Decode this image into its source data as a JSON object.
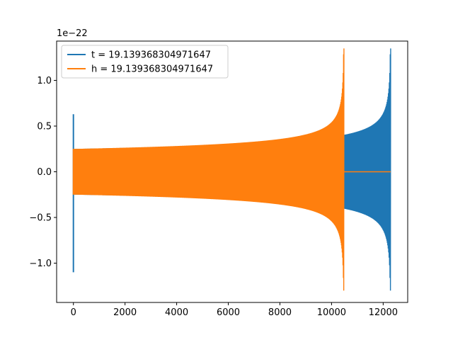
{
  "chart_data": {
    "type": "line",
    "title": "",
    "xlabel": "",
    "ylabel": "",
    "y_offset_text": "1e−22",
    "xlim": [
      -650,
      12950
    ],
    "ylim": [
      -1.43,
      1.43
    ],
    "x_ticks": [
      0,
      2000,
      4000,
      6000,
      8000,
      10000,
      12000
    ],
    "x_tick_labels": [
      "0",
      "2000",
      "4000",
      "6000",
      "8000",
      "10000",
      "12000"
    ],
    "y_ticks": [
      -1.0,
      -0.5,
      0.0,
      0.5,
      1.0
    ],
    "y_tick_labels": [
      "−1.0",
      "−0.5",
      "0.0",
      "0.5",
      "1.0"
    ],
    "grid": false,
    "legend_position": "top-left",
    "series": [
      {
        "name": "t = 19.139368304971647",
        "color": "#1f77b4",
        "x_end": 12290,
        "merger_x": 12290,
        "initial_amplitude": 0.25,
        "max_amplitude": 1.35,
        "min_value": -1.3,
        "start_spike": [
          -1.1,
          0.63
        ]
      },
      {
        "name": "h = 19.139368304971647",
        "color": "#ff7f0e",
        "x_end": 12290,
        "merger_x": 10480,
        "initial_amplitude": 0.25,
        "max_amplitude": 1.35,
        "min_value": -1.3,
        "start_spike": [
          -0.25,
          0.25
        ]
      }
    ]
  }
}
